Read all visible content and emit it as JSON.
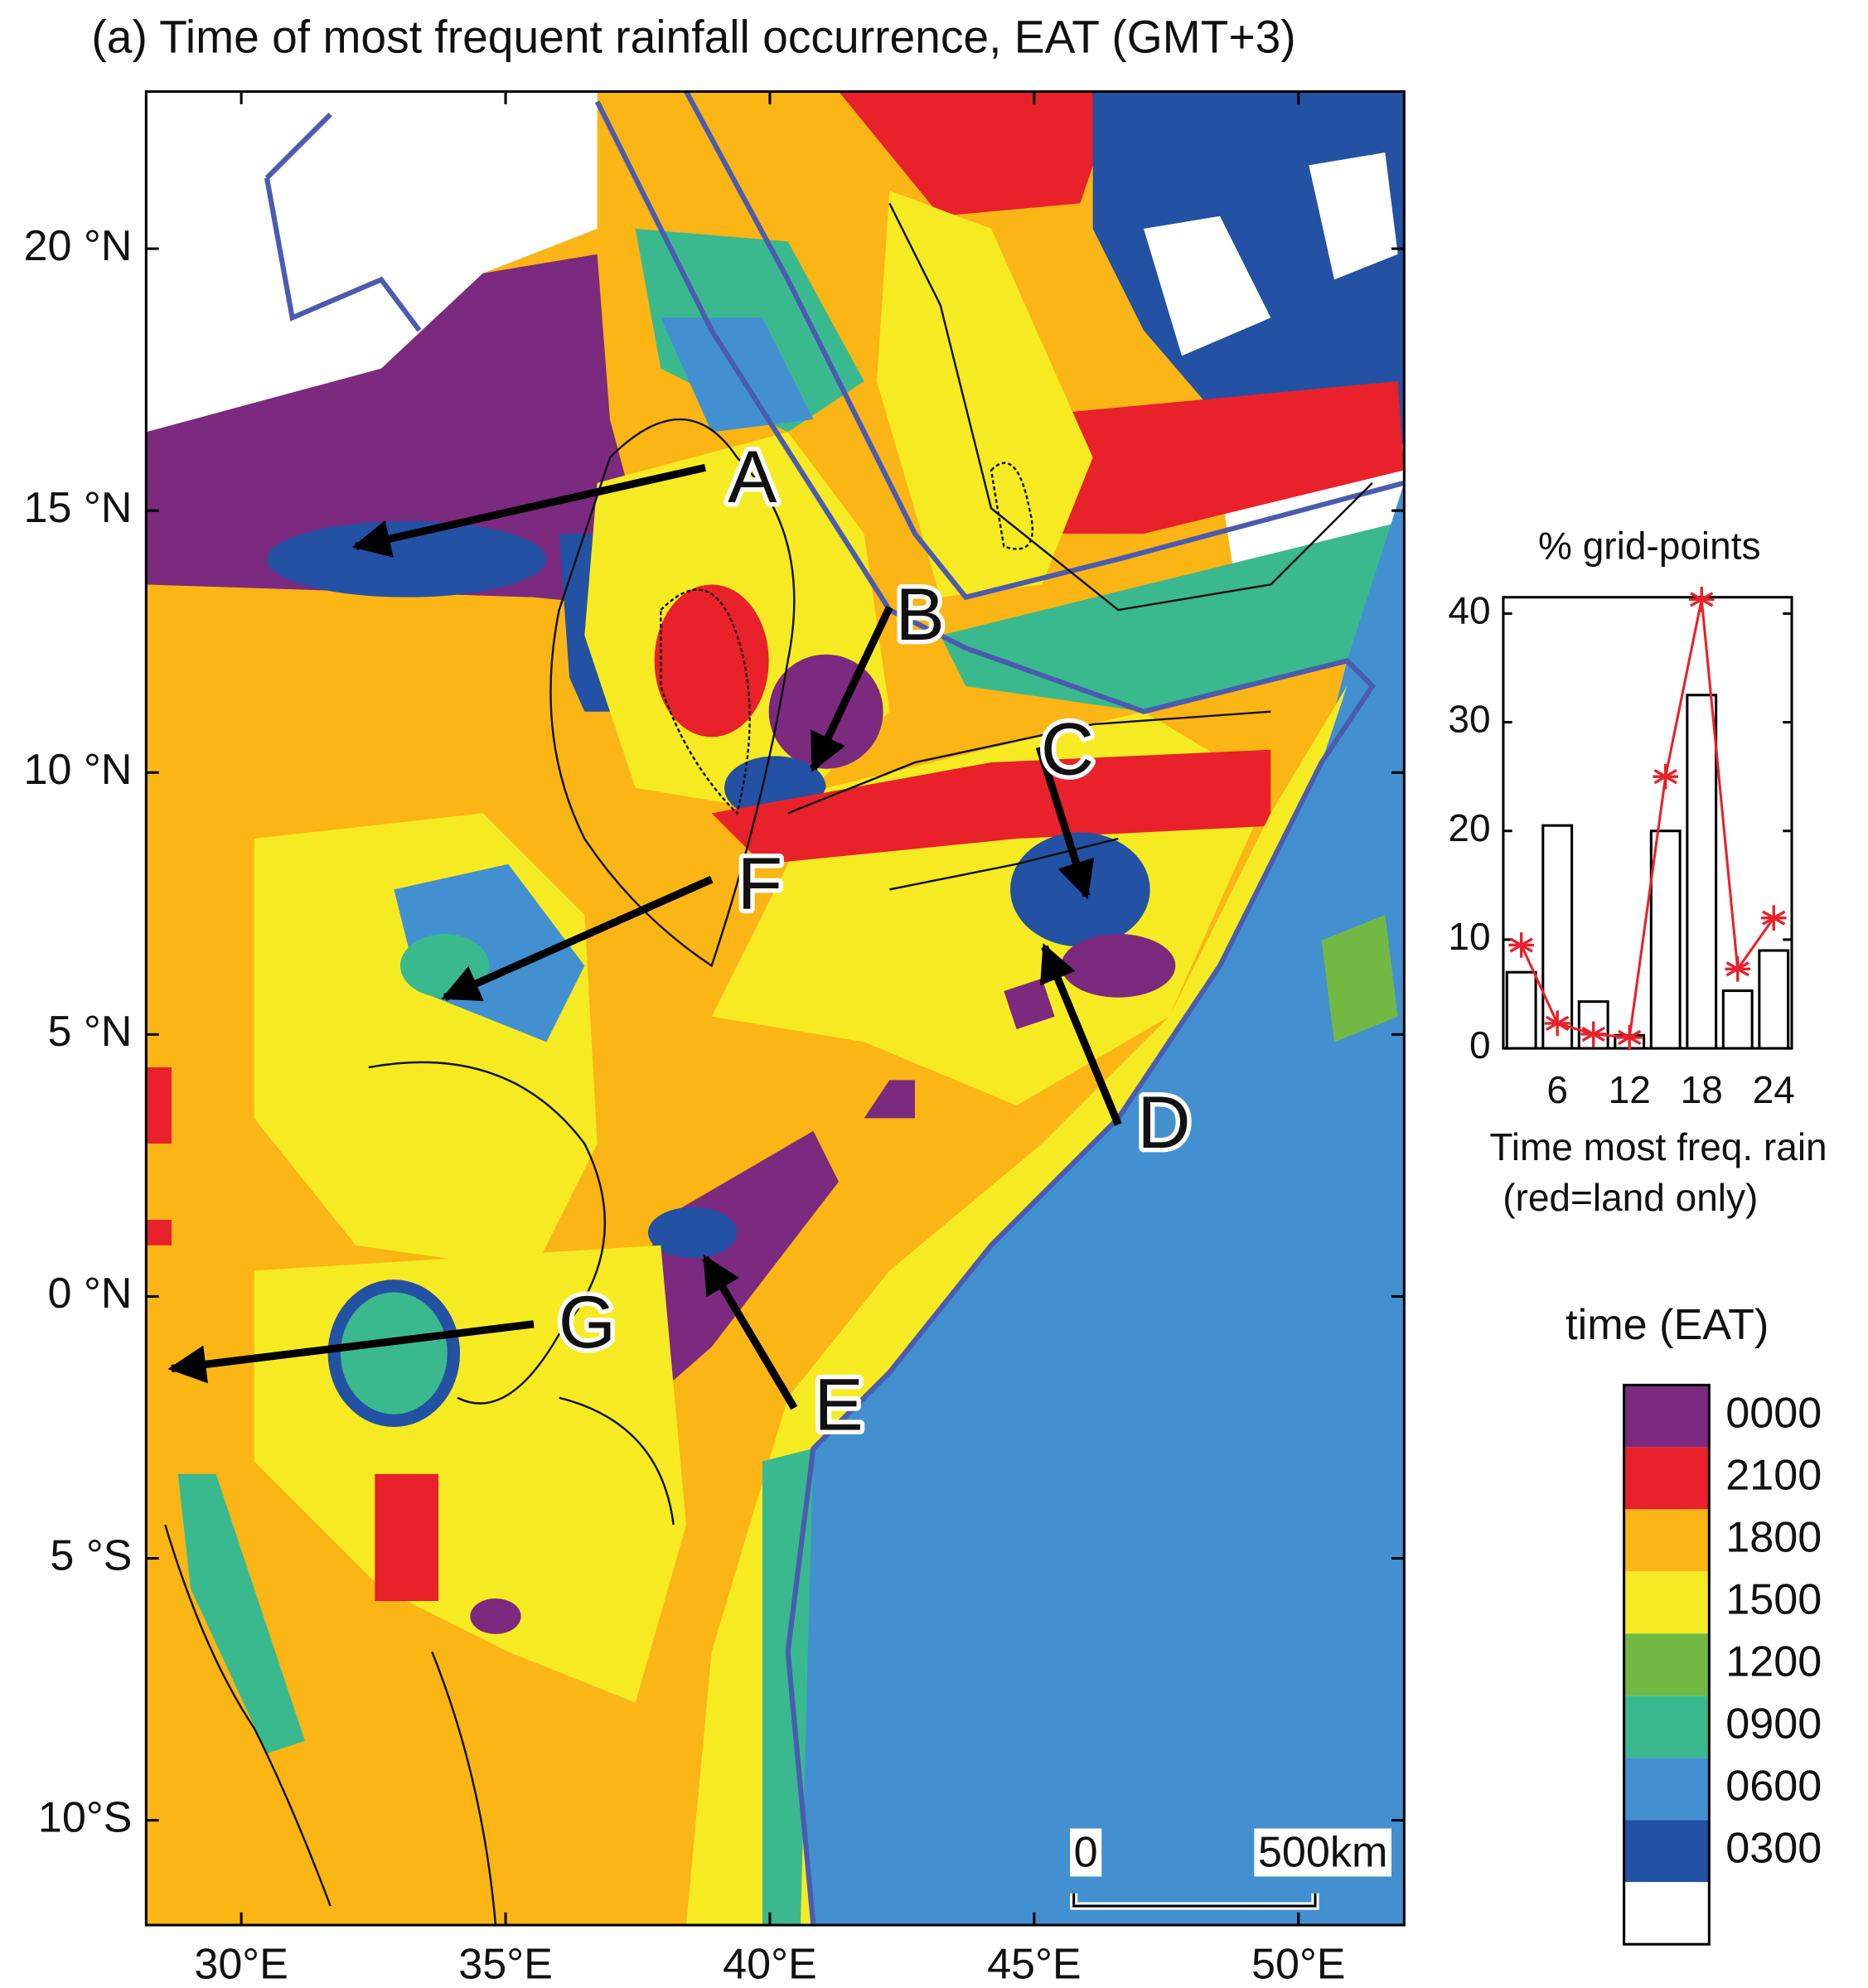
{
  "title": "(a) Time of most frequent rainfall occurrence, EAT (GMT+3)",
  "map": {
    "xlim": [
      28.2,
      52
    ],
    "ylim": [
      -12,
      23
    ],
    "xticks": [
      {
        "value": 30,
        "label": "30°E"
      },
      {
        "value": 35,
        "label": "35°E"
      },
      {
        "value": 40,
        "label": "40°E"
      },
      {
        "value": 45,
        "label": "45°E"
      },
      {
        "value": 50,
        "label": "50°E"
      }
    ],
    "yticks": [
      {
        "value": 20,
        "label": "20 °N"
      },
      {
        "value": 15,
        "label": "15 °N"
      },
      {
        "value": 10,
        "label": "10 °N"
      },
      {
        "value": 5,
        "label": "5 °N"
      },
      {
        "value": 0,
        "label": "0 °N"
      },
      {
        "value": -5,
        "label": "5 °S"
      },
      {
        "value": -10,
        "label": "10°S"
      }
    ],
    "annotations": [
      "A",
      "B",
      "C",
      "D",
      "E",
      "F",
      "G"
    ],
    "scale_bar": [
      "0",
      "500km"
    ]
  },
  "chart_data": {
    "type": "bar",
    "title": "% grid-points",
    "xlabel": "Time most freq. rain",
    "xlabel2": "(red=land only)",
    "x": [
      3,
      6,
      9,
      12,
      15,
      18,
      21,
      24
    ],
    "series": [
      {
        "type": "bar",
        "color": "#ffffff",
        "values": [
          7,
          20.5,
          4.3,
          1.2,
          20,
          32.5,
          5.3,
          9
        ]
      },
      {
        "type": "line",
        "color": "#e8212a",
        "values": [
          9.5,
          2.3,
          1.3,
          1,
          25,
          41.3,
          7.3,
          12
        ]
      }
    ],
    "xlim": [
      1.5,
      25.5
    ],
    "xticks": [
      6,
      12,
      18,
      24
    ],
    "ylim": [
      0,
      41.5
    ],
    "yticks": [
      0,
      10,
      20,
      30,
      40
    ]
  },
  "colorbar": {
    "title": "time (EAT)",
    "labels": [
      "0000",
      "2100",
      "1800",
      "1500",
      "1200",
      "0900",
      "0600",
      "0300"
    ],
    "colors": [
      "#7b2a80",
      "#e8212a",
      "#fbb514",
      "#f6eb22",
      "#72b944",
      "#3ab98f",
      "#4290d0",
      "#2351a4",
      "#ffffff"
    ]
  }
}
